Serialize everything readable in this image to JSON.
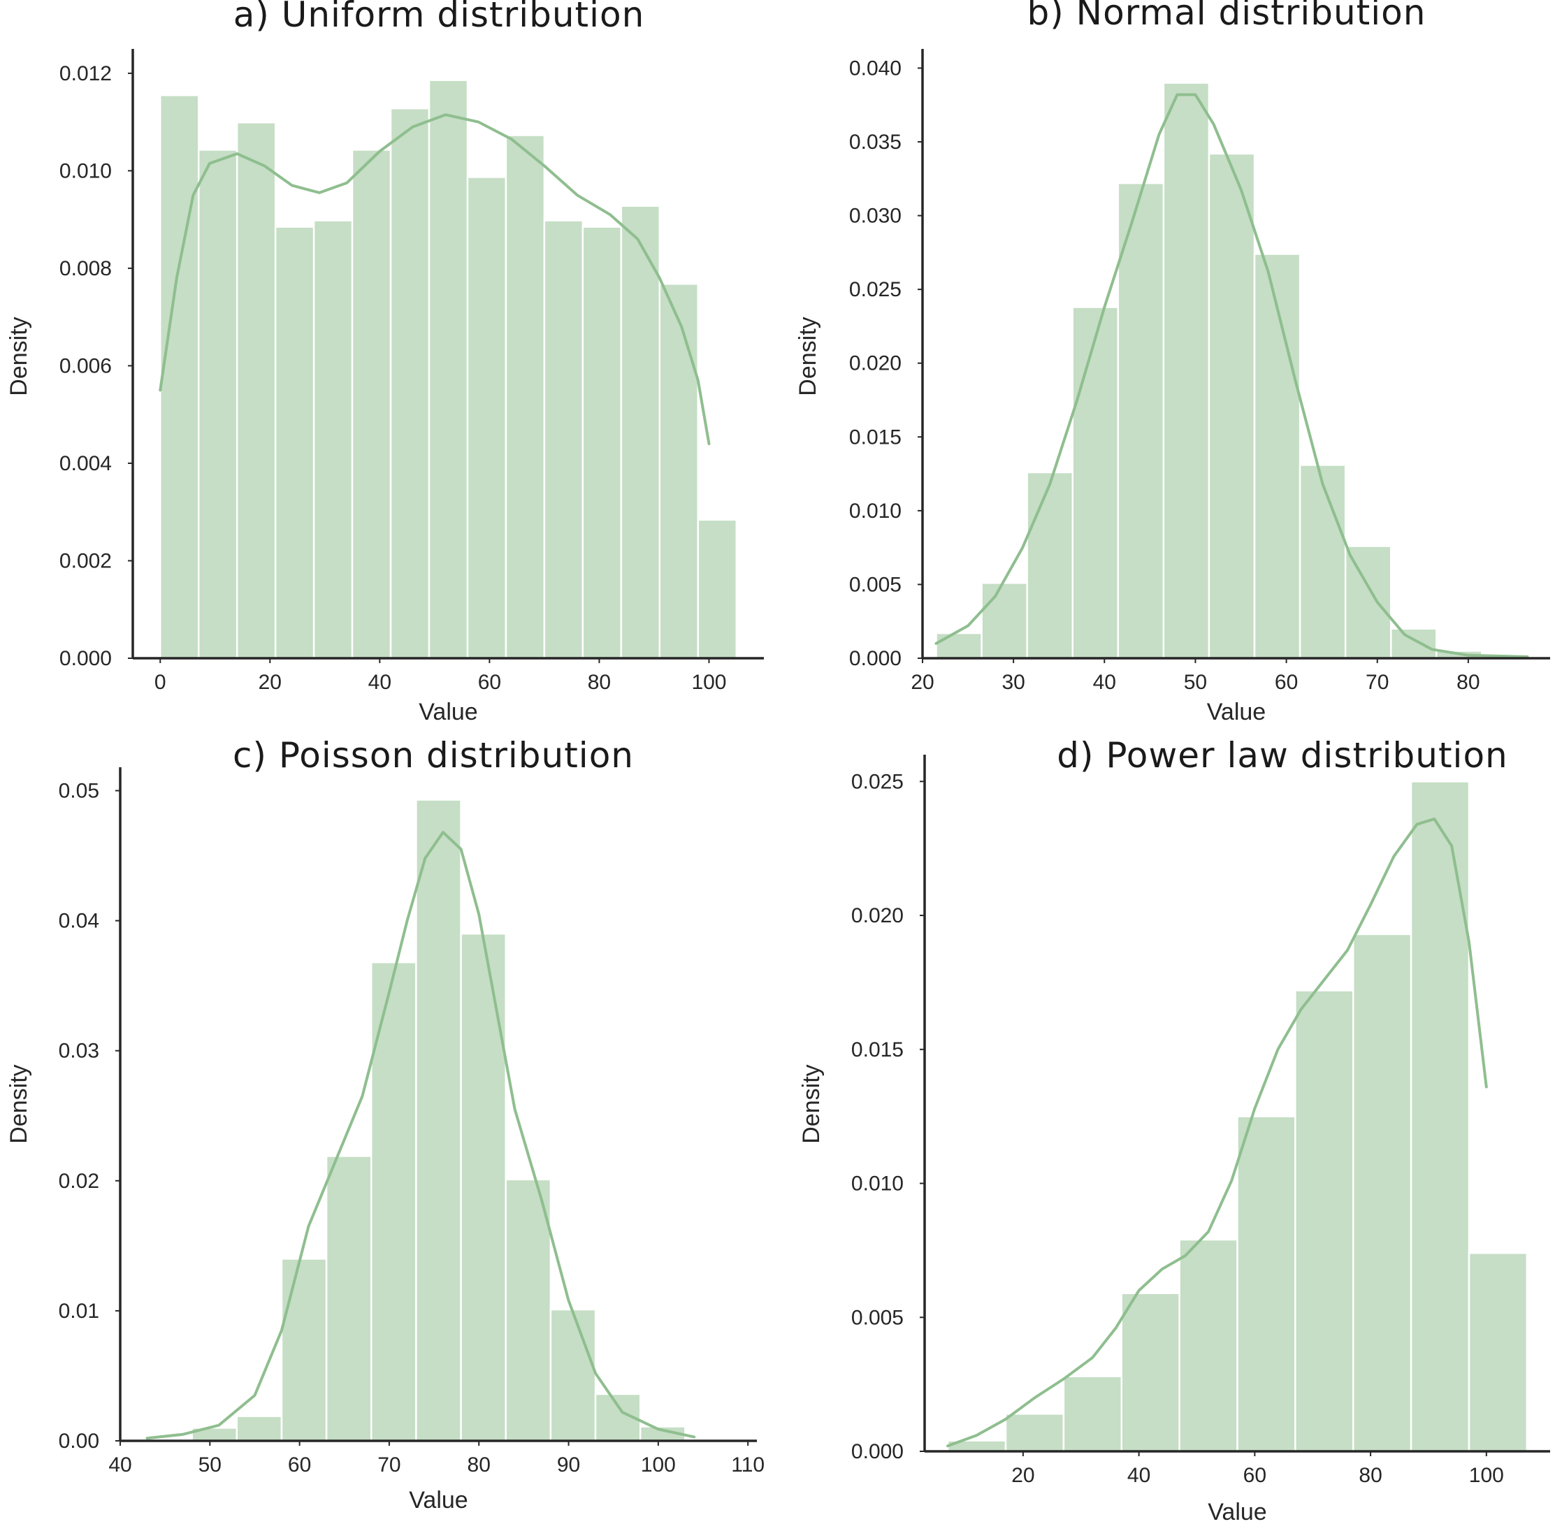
{
  "colors": {
    "bar": "#c5dec5",
    "kde": "#8fbe8f",
    "axis": "#262626"
  },
  "chart_data": [
    {
      "type": "bar",
      "title": "a) Uniform distribution",
      "xlabel": "Value",
      "ylabel": "Density",
      "xlim": [
        -5,
        110
      ],
      "ylim": [
        0,
        0.0125
      ],
      "xticks": [
        0,
        20,
        40,
        60,
        80,
        100
      ],
      "xtick_labels": [
        "0",
        "20",
        "40",
        "60",
        "80",
        "100"
      ],
      "yticks": [
        0,
        0.002,
        0.004,
        0.006,
        0.008,
        0.01,
        0.012
      ],
      "ytick_labels": [
        "0.000",
        "0.002",
        "0.004",
        "0.006",
        "0.008",
        "0.010",
        "0.012"
      ],
      "grid": false,
      "bins": [
        {
          "x0": 0,
          "x1": 7,
          "y": 0.01155
        },
        {
          "x0": 7,
          "x1": 14,
          "y": 0.01043
        },
        {
          "x0": 14,
          "x1": 21,
          "y": 0.01099
        },
        {
          "x0": 21,
          "x1": 28,
          "y": 0.00885
        },
        {
          "x0": 28,
          "x1": 35,
          "y": 0.00898
        },
        {
          "x0": 35,
          "x1": 42,
          "y": 0.01043
        },
        {
          "x0": 42,
          "x1": 49,
          "y": 0.01128
        },
        {
          "x0": 49,
          "x1": 56,
          "y": 0.01186
        },
        {
          "x0": 56,
          "x1": 63,
          "y": 0.00987
        },
        {
          "x0": 63,
          "x1": 70,
          "y": 0.01073
        },
        {
          "x0": 70,
          "x1": 77,
          "y": 0.00898
        },
        {
          "x0": 77,
          "x1": 84,
          "y": 0.00885
        },
        {
          "x0": 84,
          "x1": 91,
          "y": 0.00928
        },
        {
          "x0": 91,
          "x1": 98,
          "y": 0.00768
        },
        {
          "x0": 98,
          "x1": 105,
          "y": 0.00284
        }
      ],
      "kde": [
        [
          0,
          0.0055
        ],
        [
          3,
          0.0078
        ],
        [
          6,
          0.0095
        ],
        [
          9,
          0.01015
        ],
        [
          14,
          0.01035
        ],
        [
          19,
          0.0101
        ],
        [
          24,
          0.0097
        ],
        [
          29,
          0.00955
        ],
        [
          34,
          0.00975
        ],
        [
          40,
          0.0104
        ],
        [
          46,
          0.0109
        ],
        [
          52,
          0.01115
        ],
        [
          58,
          0.011
        ],
        [
          64,
          0.01065
        ],
        [
          70,
          0.0101
        ],
        [
          76,
          0.0095
        ],
        [
          82,
          0.0091
        ],
        [
          87,
          0.0086
        ],
        [
          91,
          0.0078
        ],
        [
          95,
          0.0068
        ],
        [
          98,
          0.0057
        ],
        [
          100,
          0.0044
        ]
      ]
    },
    {
      "type": "bar",
      "title": "b) Normal distribution",
      "xlabel": "Value",
      "ylabel": "Density",
      "xlim": [
        20,
        89
      ],
      "ylim": [
        0,
        0.0413
      ],
      "xticks": [
        20,
        30,
        40,
        50,
        60,
        70,
        80
      ],
      "xtick_labels": [
        "20",
        "30",
        "40",
        "50",
        "60",
        "70",
        "80"
      ],
      "yticks": [
        0,
        0.005,
        0.01,
        0.015,
        0.02,
        0.025,
        0.03,
        0.035,
        0.04
      ],
      "ytick_labels": [
        "0.000",
        "0.005",
        "0.010",
        "0.015",
        "0.020",
        "0.025",
        "0.030",
        "0.035",
        "0.040"
      ],
      "grid": false,
      "bins": [
        {
          "x0": 21.5,
          "x1": 26.5,
          "y": 0.0017
        },
        {
          "x0": 26.5,
          "x1": 31.5,
          "y": 0.0051
        },
        {
          "x0": 31.5,
          "x1": 36.5,
          "y": 0.0126
        },
        {
          "x0": 36.5,
          "x1": 41.5,
          "y": 0.0238
        },
        {
          "x0": 41.5,
          "x1": 46.5,
          "y": 0.0322
        },
        {
          "x0": 46.5,
          "x1": 51.5,
          "y": 0.039
        },
        {
          "x0": 51.5,
          "x1": 56.5,
          "y": 0.0342
        },
        {
          "x0": 56.5,
          "x1": 61.5,
          "y": 0.0274
        },
        {
          "x0": 61.5,
          "x1": 66.5,
          "y": 0.0131
        },
        {
          "x0": 66.5,
          "x1": 71.5,
          "y": 0.0076
        },
        {
          "x0": 71.5,
          "x1": 76.5,
          "y": 0.002
        },
        {
          "x0": 76.5,
          "x1": 81.5,
          "y": 0.0005
        },
        {
          "x0": 81.5,
          "x1": 86.5,
          "y": 0.0001
        }
      ],
      "kde": [
        [
          21.5,
          0.001
        ],
        [
          25,
          0.0022
        ],
        [
          28,
          0.0042
        ],
        [
          31,
          0.0075
        ],
        [
          34,
          0.0118
        ],
        [
          37,
          0.0175
        ],
        [
          40,
          0.0238
        ],
        [
          43,
          0.0295
        ],
        [
          46,
          0.0355
        ],
        [
          48,
          0.0382
        ],
        [
          50,
          0.0382
        ],
        [
          52,
          0.0362
        ],
        [
          55,
          0.0318
        ],
        [
          58,
          0.0262
        ],
        [
          61,
          0.0188
        ],
        [
          64,
          0.0118
        ],
        [
          67,
          0.007
        ],
        [
          70,
          0.0038
        ],
        [
          73,
          0.0016
        ],
        [
          76,
          0.0006
        ],
        [
          80,
          0.0002
        ],
        [
          86.5,
          0.0001
        ]
      ]
    },
    {
      "type": "bar",
      "title": "c) Poisson distribution",
      "xlabel": "Value",
      "ylabel": "Density",
      "xlim": [
        40,
        111
      ],
      "ylim": [
        0,
        0.0518
      ],
      "xticks": [
        40,
        50,
        60,
        70,
        80,
        90,
        100,
        110
      ],
      "xtick_labels": [
        "40",
        "50",
        "60",
        "70",
        "80",
        "90",
        "100",
        "110"
      ],
      "yticks": [
        0,
        0.01,
        0.02,
        0.03,
        0.04,
        0.05
      ],
      "ytick_labels": [
        "0.00",
        "0.01",
        "0.02",
        "0.03",
        "0.04",
        "0.05"
      ],
      "grid": false,
      "bins": [
        {
          "x0": 43,
          "x1": 48,
          "y": 0.0001
        },
        {
          "x0": 48,
          "x1": 53,
          "y": 0.001
        },
        {
          "x0": 53,
          "x1": 58,
          "y": 0.0019
        },
        {
          "x0": 58,
          "x1": 63,
          "y": 0.014
        },
        {
          "x0": 63,
          "x1": 68,
          "y": 0.0219
        },
        {
          "x0": 68,
          "x1": 73,
          "y": 0.0368
        },
        {
          "x0": 73,
          "x1": 78,
          "y": 0.0493
        },
        {
          "x0": 78,
          "x1": 83,
          "y": 0.039
        },
        {
          "x0": 83,
          "x1": 88,
          "y": 0.0201
        },
        {
          "x0": 88,
          "x1": 93,
          "y": 0.0101
        },
        {
          "x0": 93,
          "x1": 98,
          "y": 0.0036
        },
        {
          "x0": 98,
          "x1": 103,
          "y": 0.0011
        },
        {
          "x0": 103,
          "x1": 108,
          "y": 0.0001
        }
      ],
      "kde": [
        [
          43,
          0.0002
        ],
        [
          47,
          0.0005
        ],
        [
          51,
          0.0012
        ],
        [
          55,
          0.0035
        ],
        [
          58,
          0.0085
        ],
        [
          61,
          0.0165
        ],
        [
          64,
          0.0215
        ],
        [
          67,
          0.0265
        ],
        [
          70,
          0.0345
        ],
        [
          72,
          0.04
        ],
        [
          74,
          0.0448
        ],
        [
          76,
          0.0468
        ],
        [
          78,
          0.0455
        ],
        [
          80,
          0.0405
        ],
        [
          82,
          0.033
        ],
        [
          84,
          0.0255
        ],
        [
          87,
          0.0185
        ],
        [
          90,
          0.0108
        ],
        [
          93,
          0.0052
        ],
        [
          96,
          0.0022
        ],
        [
          100,
          0.0009
        ],
        [
          104,
          0.0003
        ]
      ]
    },
    {
      "type": "bar",
      "title": "d) Power law distribution",
      "xlabel": "Value",
      "ylabel": "Density",
      "xlim": [
        3,
        111
      ],
      "ylim": [
        0,
        0.026
      ],
      "xticks": [
        20,
        40,
        60,
        80,
        100
      ],
      "xtick_labels": [
        "20",
        "40",
        "60",
        "80",
        "100"
      ],
      "yticks": [
        0,
        0.005,
        0.01,
        0.015,
        0.02,
        0.025
      ],
      "ytick_labels": [
        "0.000",
        "0.005",
        "0.010",
        "0.015",
        "0.020",
        "0.025"
      ],
      "grid": false,
      "bins": [
        {
          "x0": 7,
          "x1": 17,
          "y": 0.0004
        },
        {
          "x0": 17,
          "x1": 27,
          "y": 0.0014
        },
        {
          "x0": 27,
          "x1": 37,
          "y": 0.0028
        },
        {
          "x0": 37,
          "x1": 47,
          "y": 0.0059
        },
        {
          "x0": 47,
          "x1": 57,
          "y": 0.0079
        },
        {
          "x0": 57,
          "x1": 67,
          "y": 0.0125
        },
        {
          "x0": 67,
          "x1": 77,
          "y": 0.0172
        },
        {
          "x0": 77,
          "x1": 87,
          "y": 0.0193
        },
        {
          "x0": 87,
          "x1": 97,
          "y": 0.025
        },
        {
          "x0": 97,
          "x1": 107,
          "y": 0.0074
        }
      ],
      "kde": [
        [
          7,
          0.0002
        ],
        [
          12,
          0.0006
        ],
        [
          17,
          0.0012
        ],
        [
          22,
          0.002
        ],
        [
          27,
          0.0027
        ],
        [
          32,
          0.0035
        ],
        [
          36,
          0.0046
        ],
        [
          40,
          0.006
        ],
        [
          44,
          0.0068
        ],
        [
          48,
          0.0073
        ],
        [
          52,
          0.0082
        ],
        [
          56,
          0.0101
        ],
        [
          60,
          0.0128
        ],
        [
          64,
          0.015
        ],
        [
          68,
          0.0165
        ],
        [
          72,
          0.0176
        ],
        [
          76,
          0.0187
        ],
        [
          80,
          0.0204
        ],
        [
          84,
          0.0222
        ],
        [
          88,
          0.0234
        ],
        [
          91,
          0.0236
        ],
        [
          94,
          0.0226
        ],
        [
          97,
          0.019
        ],
        [
          100,
          0.0136
        ]
      ]
    }
  ]
}
